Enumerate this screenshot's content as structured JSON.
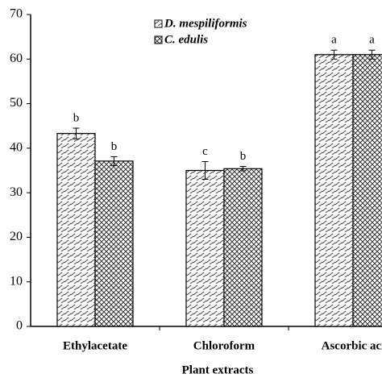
{
  "chart_data": {
    "type": "bar",
    "x_label": "Plant extracts",
    "categories": [
      "Ethylacetate",
      "Chloroform",
      "Ascorbic aci"
    ],
    "series": [
      {
        "name": "D. mespiliformis",
        "color": "#000000",
        "pattern": "dashes",
        "values": [
          43.3,
          35,
          61
        ],
        "errors": [
          1.2,
          2,
          1
        ],
        "labels": [
          "b",
          "c",
          "a"
        ]
      },
      {
        "name": "C. edulis",
        "color": "#000000",
        "pattern": "crosshatch",
        "values": [
          37.1,
          35.4,
          61
        ],
        "errors": [
          1,
          0.5,
          1
        ],
        "labels": [
          "b",
          "b",
          "a"
        ]
      }
    ],
    "ylim": [
      0,
      70
    ],
    "yticks": [
      0,
      10,
      20,
      30,
      40,
      50,
      60,
      70
    ],
    "grid": false,
    "legend": "top"
  }
}
